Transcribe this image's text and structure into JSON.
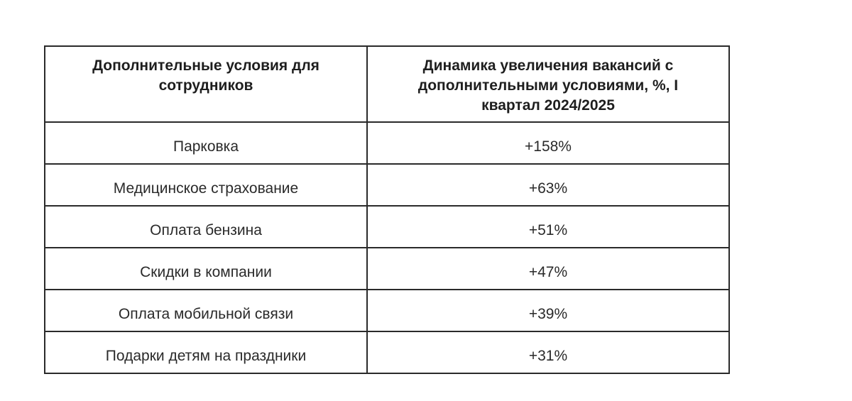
{
  "table": {
    "headers": [
      "Дополнительные условия для сотрудников",
      "Динамика увеличения вакансий с дополнительными условиями, %, I квартал 2024/2025"
    ],
    "rows": [
      {
        "condition": "Парковка",
        "growth": "+158%"
      },
      {
        "condition": "Медицинское страхование",
        "growth": "+63%"
      },
      {
        "condition": "Оплата бензина",
        "growth": "+51%"
      },
      {
        "condition": "Скидки в компании",
        "growth": "+47%"
      },
      {
        "condition": "Оплата мобильной связи",
        "growth": "+39%"
      },
      {
        "condition": "Подарки детям на праздники",
        "growth": "+31%"
      }
    ]
  }
}
